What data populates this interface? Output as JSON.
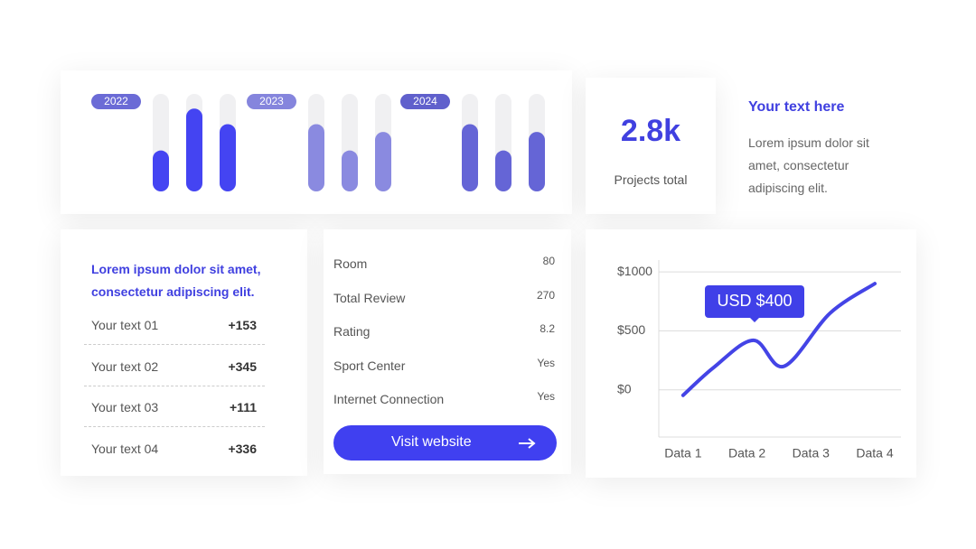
{
  "bar_panel": {
    "ylim": [
      0,
      100
    ],
    "groups": [
      {
        "label": "2022",
        "color": "#4444f2",
        "pill": "#6b6bd6",
        "values": [
          42,
          85,
          69
        ]
      },
      {
        "label": "2023",
        "color": "#8a8ae0",
        "pill": "#8585dd",
        "values": [
          69,
          42,
          61
        ]
      },
      {
        "label": "2024",
        "color": "#6565d6",
        "pill": "#6060cc",
        "values": [
          69,
          42,
          61
        ]
      }
    ]
  },
  "stat": {
    "value": "2.8k",
    "label": "Projects total"
  },
  "text_block": {
    "title": "Your text here",
    "body": "Lorem ipsum dolor sit amet, consectetur adipiscing elit."
  },
  "list_card": {
    "heading": "Lorem ipsum dolor sit amet, consectetur adipiscing elit.",
    "rows": [
      {
        "label": "Your text 01",
        "value": "+153"
      },
      {
        "label": "Your text 02",
        "value": "+345"
      },
      {
        "label": "Your text 03",
        "value": "+111"
      },
      {
        "label": "Your text 04",
        "value": "+336"
      }
    ]
  },
  "info_card": {
    "rows": [
      {
        "label": "Room",
        "value": "80"
      },
      {
        "label": "Total Review",
        "value": "270"
      },
      {
        "label": "Rating",
        "value": "8.2"
      },
      {
        "label": "Sport Center",
        "value": "Yes"
      },
      {
        "label": "Internet Connection",
        "value": "Yes"
      }
    ],
    "button": "Visit website"
  },
  "chart_data": {
    "type": "line",
    "xlim": [
      0.62,
      4.41
    ],
    "xticks": [
      {
        "value": 1,
        "label": "Data 1"
      },
      {
        "value": 2,
        "label": "Data 2"
      },
      {
        "value": 3,
        "label": "Data 3"
      },
      {
        "value": 4,
        "label": "Data 4"
      }
    ],
    "ylim": [
      -400,
      1100
    ],
    "yticks": [
      {
        "value": 1000,
        "label": "$1000"
      },
      {
        "value": 500,
        "label": "$500"
      },
      {
        "value": 0,
        "label": "$0"
      }
    ],
    "grid": true,
    "annotation": "USD $400",
    "x": [
      1,
      1.48,
      2.1,
      2.58,
      3.3,
      4
    ],
    "series": [
      {
        "color": "#4444e6",
        "values": [
          -46,
          190,
          420,
          200,
          650,
          900
        ]
      }
    ]
  }
}
